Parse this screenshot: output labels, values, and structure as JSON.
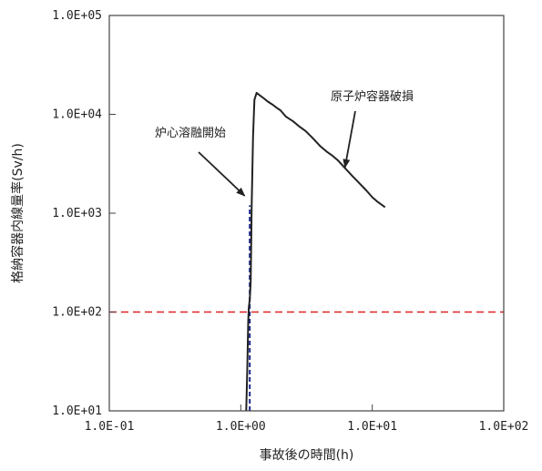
{
  "chart_data": {
    "type": "line",
    "xlabel": "事故後の時間(h)",
    "ylabel": "格納容器内線量率(Sv/h)",
    "xscale": "log",
    "yscale": "log",
    "xlim": [
      0.1,
      100
    ],
    "ylim": [
      10,
      100000
    ],
    "grid": false,
    "x_tick_labels": [
      "1.0E-01",
      "1.0E+00",
      "1.0E+01",
      "1.0E+02"
    ],
    "y_tick_labels": [
      "1.0E+01",
      "1.0E+02",
      "1.0E+03",
      "1.0E+04",
      "1.0E+05"
    ],
    "series": [
      {
        "color": "#222222",
        "x": [
          1.1,
          1.12,
          1.14,
          1.15,
          1.17,
          1.19,
          1.21,
          1.24,
          1.27,
          1.32,
          1.4,
          1.5,
          1.6,
          1.75,
          1.9,
          2.0,
          2.2,
          2.5,
          2.8,
          3.1,
          3.5,
          4.0,
          4.5,
          5.0,
          5.5,
          6.0,
          7.0,
          8.0,
          9.0,
          10.0,
          11.0,
          12.5
        ],
        "y": [
          10,
          25,
          80,
          110,
          135,
          200,
          1200,
          6000,
          14000,
          16500,
          15500,
          14500,
          13500,
          12500,
          11500,
          11000,
          9500,
          8500,
          7500,
          6800,
          5800,
          4800,
          4200,
          3800,
          3400,
          3000,
          2400,
          2000,
          1700,
          1450,
          1300,
          1150
        ]
      }
    ],
    "reference_lines": [
      {
        "orientation": "horizontal",
        "value": 100,
        "color": "#dd2222",
        "style": "dashed"
      },
      {
        "orientation": "vertical",
        "value": 1.17,
        "ymin": 10,
        "ymax": 1200,
        "color": "#1a2a8a",
        "style": "dashed"
      }
    ],
    "annotations": [
      {
        "text": "炉心溶融開始",
        "arrow_to": [
          1.07,
          1500
        ]
      },
      {
        "text": "原子炉容器破損",
        "arrow_to": [
          6.2,
          2900
        ]
      }
    ]
  }
}
